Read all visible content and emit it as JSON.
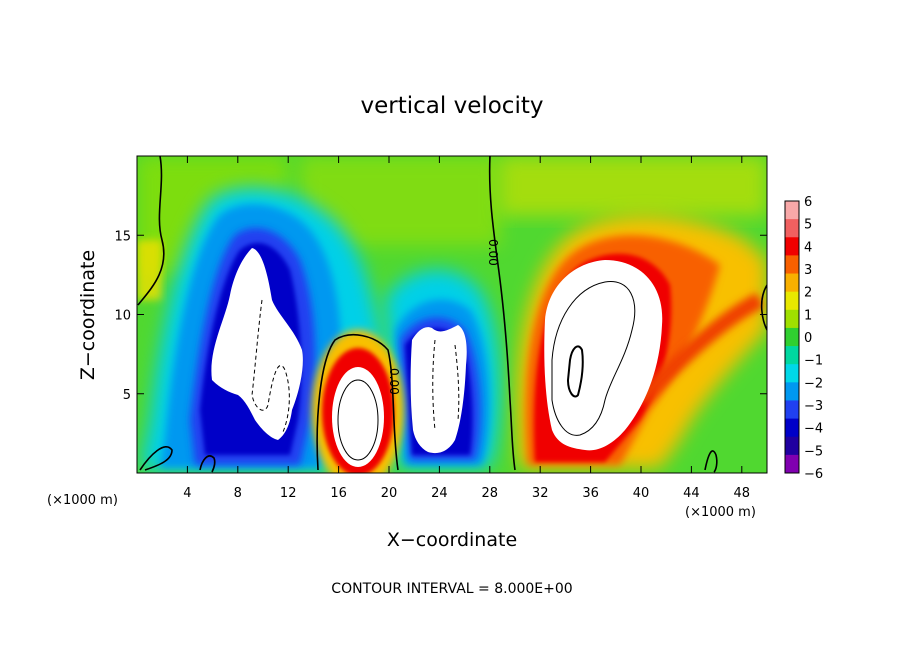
{
  "chart_data": {
    "type": "heatmap",
    "title": "vertical velocity",
    "xlabel": "X−coordinate",
    "ylabel": "Z−coordinate",
    "x_unit": "(×1000 m)",
    "y_unit": "(×1000 m)",
    "xlim": [
      0,
      50
    ],
    "ylim": [
      0,
      20
    ],
    "x_ticks": [
      4,
      8,
      12,
      16,
      20,
      24,
      28,
      32,
      36,
      40,
      44,
      48
    ],
    "y_ticks": [
      5,
      10,
      15
    ],
    "colorbar": {
      "min": -6,
      "max": 6,
      "ticks": [
        "6",
        "5",
        "4",
        "3",
        "2",
        "1",
        "0",
        "−1",
        "−2",
        "−3",
        "−4",
        "−5",
        "−6"
      ],
      "colors": [
        "#f8a8a8",
        "#f06060",
        "#f00000",
        "#f86000",
        "#f8b000",
        "#e8e800",
        "#a0e000",
        "#30d030",
        "#00d8a0",
        "#00d8e8",
        "#0098f0",
        "#2040f0",
        "#0000c8",
        "#2000a0",
        "#8000b0"
      ]
    },
    "contour_labels": [
      "0.00",
      "0.00"
    ],
    "annotation": "CONTOUR INTERVAL = 8.000E+00",
    "features": [
      {
        "kind": "downdraft",
        "x": 10,
        "z": 8,
        "w": -7
      },
      {
        "kind": "updraft",
        "x": 18,
        "z": 4,
        "w": 8
      },
      {
        "kind": "downdraft",
        "x": 24,
        "z": 5.5,
        "w": -7
      },
      {
        "kind": "updraft",
        "x": 35,
        "z": 7,
        "w": 8
      }
    ]
  }
}
